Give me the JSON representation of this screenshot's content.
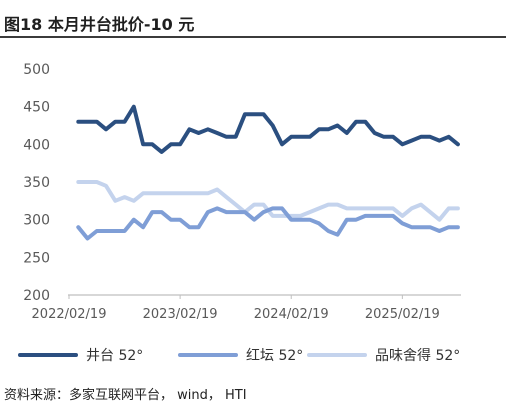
{
  "source": "资料来源：多家互联网平台， wind， HTI",
  "chart_data": {
    "type": "line",
    "title": "图18 本月井台批价-10 元",
    "x": [
      "2022/03/19",
      "2022/04/19",
      "2022/05/19",
      "2022/06/19",
      "2022/07/19",
      "2022/08/19",
      "2022/09/19",
      "2022/10/19",
      "2022/11/19",
      "2022/12/19",
      "2023/01/19",
      "2023/02/19",
      "2023/03/19",
      "2023/04/19",
      "2023/05/19",
      "2023/06/19",
      "2023/07/19",
      "2023/08/19",
      "2023/09/19",
      "2023/10/19",
      "2023/11/19",
      "2023/12/19",
      "2024/01/19",
      "2024/02/19",
      "2024/03/19",
      "2024/04/19",
      "2024/05/19",
      "2024/06/19",
      "2024/07/19",
      "2024/08/19",
      "2024/09/19",
      "2024/10/19",
      "2024/11/19",
      "2024/12/19",
      "2025/01/19",
      "2025/02/19",
      "2025/03/19",
      "2025/04/19",
      "2025/05/19",
      "2025/06/19",
      "2025/07/19",
      "2025/08/19"
    ],
    "x_ticks": [
      "2022/02/19",
      "2023/02/19",
      "2024/02/19",
      "2025/02/19"
    ],
    "y_ticks": [
      200,
      250,
      300,
      350,
      400,
      450,
      500
    ],
    "ylim": [
      200,
      500
    ],
    "grid": false,
    "legend": "bottom",
    "series": [
      {
        "name": "井台 52°",
        "color": "#2b4f80",
        "values": [
          430,
          430,
          430,
          420,
          430,
          430,
          450,
          400,
          400,
          390,
          400,
          400,
          420,
          415,
          420,
          415,
          410,
          410,
          440,
          440,
          440,
          425,
          400,
          410,
          410,
          410,
          420,
          420,
          425,
          415,
          430,
          430,
          415,
          410,
          410,
          400,
          405,
          410,
          410,
          405,
          410,
          400
        ]
      },
      {
        "name": "红坛 52°",
        "color": "#7f9ed6",
        "values": [
          290,
          275,
          285,
          285,
          285,
          285,
          300,
          290,
          310,
          310,
          300,
          300,
          290,
          290,
          310,
          315,
          310,
          310,
          310,
          300,
          310,
          315,
          315,
          300,
          300,
          300,
          295,
          285,
          280,
          300,
          300,
          305,
          305,
          305,
          305,
          295,
          290,
          290,
          290,
          285,
          290,
          290
        ]
      },
      {
        "name": "品味舍得 52°",
        "color": "#c4d3ed",
        "values": [
          350,
          350,
          350,
          345,
          325,
          330,
          325,
          335,
          335,
          335,
          335,
          335,
          335,
          335,
          335,
          340,
          330,
          320,
          310,
          320,
          320,
          305,
          305,
          305,
          305,
          310,
          315,
          320,
          320,
          315,
          315,
          315,
          315,
          315,
          315,
          305,
          315,
          320,
          310,
          300,
          315,
          315
        ]
      }
    ]
  }
}
